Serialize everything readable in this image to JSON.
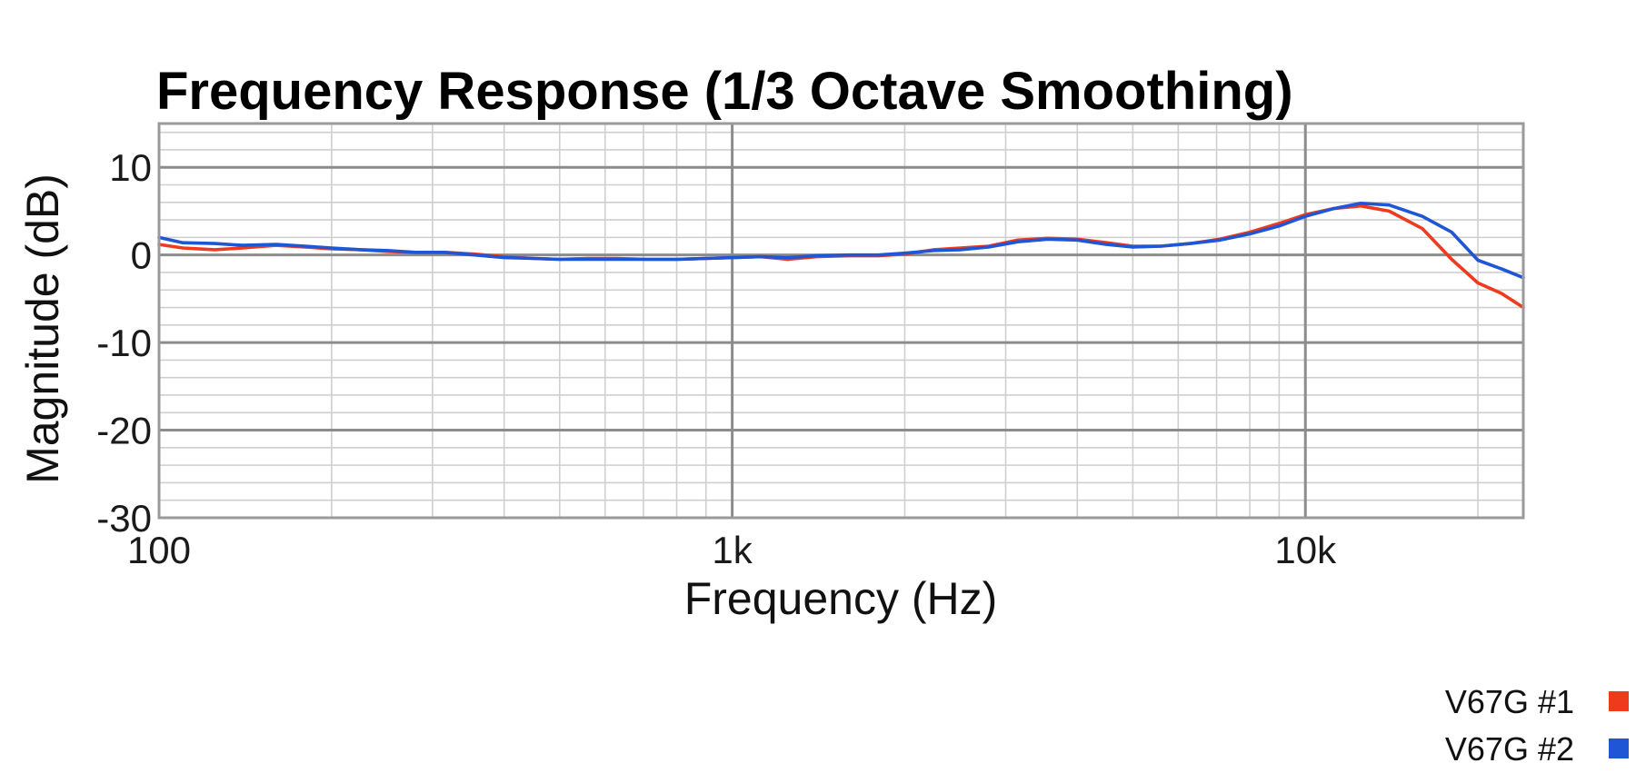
{
  "chart_data": {
    "type": "line",
    "title": "Frequency Response (1/3 Octave Smoothing)",
    "xlabel": "Frequency (Hz)",
    "ylabel": "Magnitude (dB)",
    "x_scale": "log",
    "xlim": [
      100,
      24000
    ],
    "ylim": [
      -30,
      15
    ],
    "grid": true,
    "x_ticks": [
      {
        "value": 100,
        "label": "100"
      },
      {
        "value": 1000,
        "label": "1k"
      },
      {
        "value": 10000,
        "label": "10k"
      }
    ],
    "y_ticks": [
      {
        "value": 10,
        "label": "10"
      },
      {
        "value": 0,
        "label": "0"
      },
      {
        "value": -10,
        "label": "-10"
      },
      {
        "value": -20,
        "label": "-20"
      },
      {
        "value": -30,
        "label": "-30"
      }
    ],
    "legend_placement": "bottom-right",
    "series": [
      {
        "name": "V67G #1",
        "color": "#f03a1e",
        "x": [
          100,
          110,
          125,
          140,
          160,
          180,
          200,
          225,
          250,
          280,
          315,
          355,
          400,
          450,
          500,
          560,
          630,
          710,
          800,
          900,
          1000,
          1120,
          1250,
          1400,
          1600,
          1800,
          2000,
          2250,
          2500,
          2800,
          3150,
          3550,
          4000,
          4500,
          5000,
          5600,
          6300,
          7100,
          8000,
          9000,
          10000,
          11200,
          12500,
          14000,
          16000,
          17000,
          18000,
          20000,
          22000,
          24000
        ],
        "values": [
          1.2,
          0.8,
          0.6,
          0.8,
          1.1,
          0.9,
          0.7,
          0.6,
          0.4,
          0.3,
          0.3,
          0.1,
          -0.2,
          -0.4,
          -0.5,
          -0.4,
          -0.4,
          -0.5,
          -0.5,
          -0.4,
          -0.3,
          -0.2,
          -0.5,
          -0.2,
          -0.1,
          -0.1,
          0.1,
          0.6,
          0.8,
          1.0,
          1.7,
          1.9,
          1.8,
          1.4,
          1.0,
          1.0,
          1.3,
          1.8,
          2.6,
          3.6,
          4.6,
          5.3,
          5.6,
          5.0,
          3.0,
          1.2,
          -0.5,
          -3.2,
          -4.4,
          -6.0
        ]
      },
      {
        "name": "V67G #2",
        "color": "#1f56d6",
        "x": [
          100,
          110,
          125,
          140,
          160,
          180,
          200,
          225,
          250,
          280,
          315,
          355,
          400,
          450,
          500,
          560,
          630,
          710,
          800,
          900,
          1000,
          1120,
          1250,
          1400,
          1600,
          1800,
          2000,
          2250,
          2500,
          2800,
          3150,
          3550,
          4000,
          4500,
          5000,
          5600,
          6300,
          7100,
          8000,
          9000,
          10000,
          11200,
          12500,
          14000,
          16000,
          18000,
          20000,
          22000,
          24000
        ],
        "values": [
          2.0,
          1.4,
          1.3,
          1.1,
          1.2,
          1.0,
          0.8,
          0.6,
          0.5,
          0.3,
          0.3,
          0.0,
          -0.3,
          -0.4,
          -0.5,
          -0.5,
          -0.5,
          -0.5,
          -0.5,
          -0.4,
          -0.3,
          -0.2,
          -0.3,
          -0.1,
          0.0,
          0.0,
          0.2,
          0.5,
          0.6,
          0.9,
          1.5,
          1.8,
          1.7,
          1.2,
          0.9,
          1.0,
          1.3,
          1.7,
          2.4,
          3.3,
          4.4,
          5.3,
          5.9,
          5.7,
          4.4,
          2.6,
          -0.6,
          -1.6,
          -2.6
        ]
      }
    ]
  }
}
